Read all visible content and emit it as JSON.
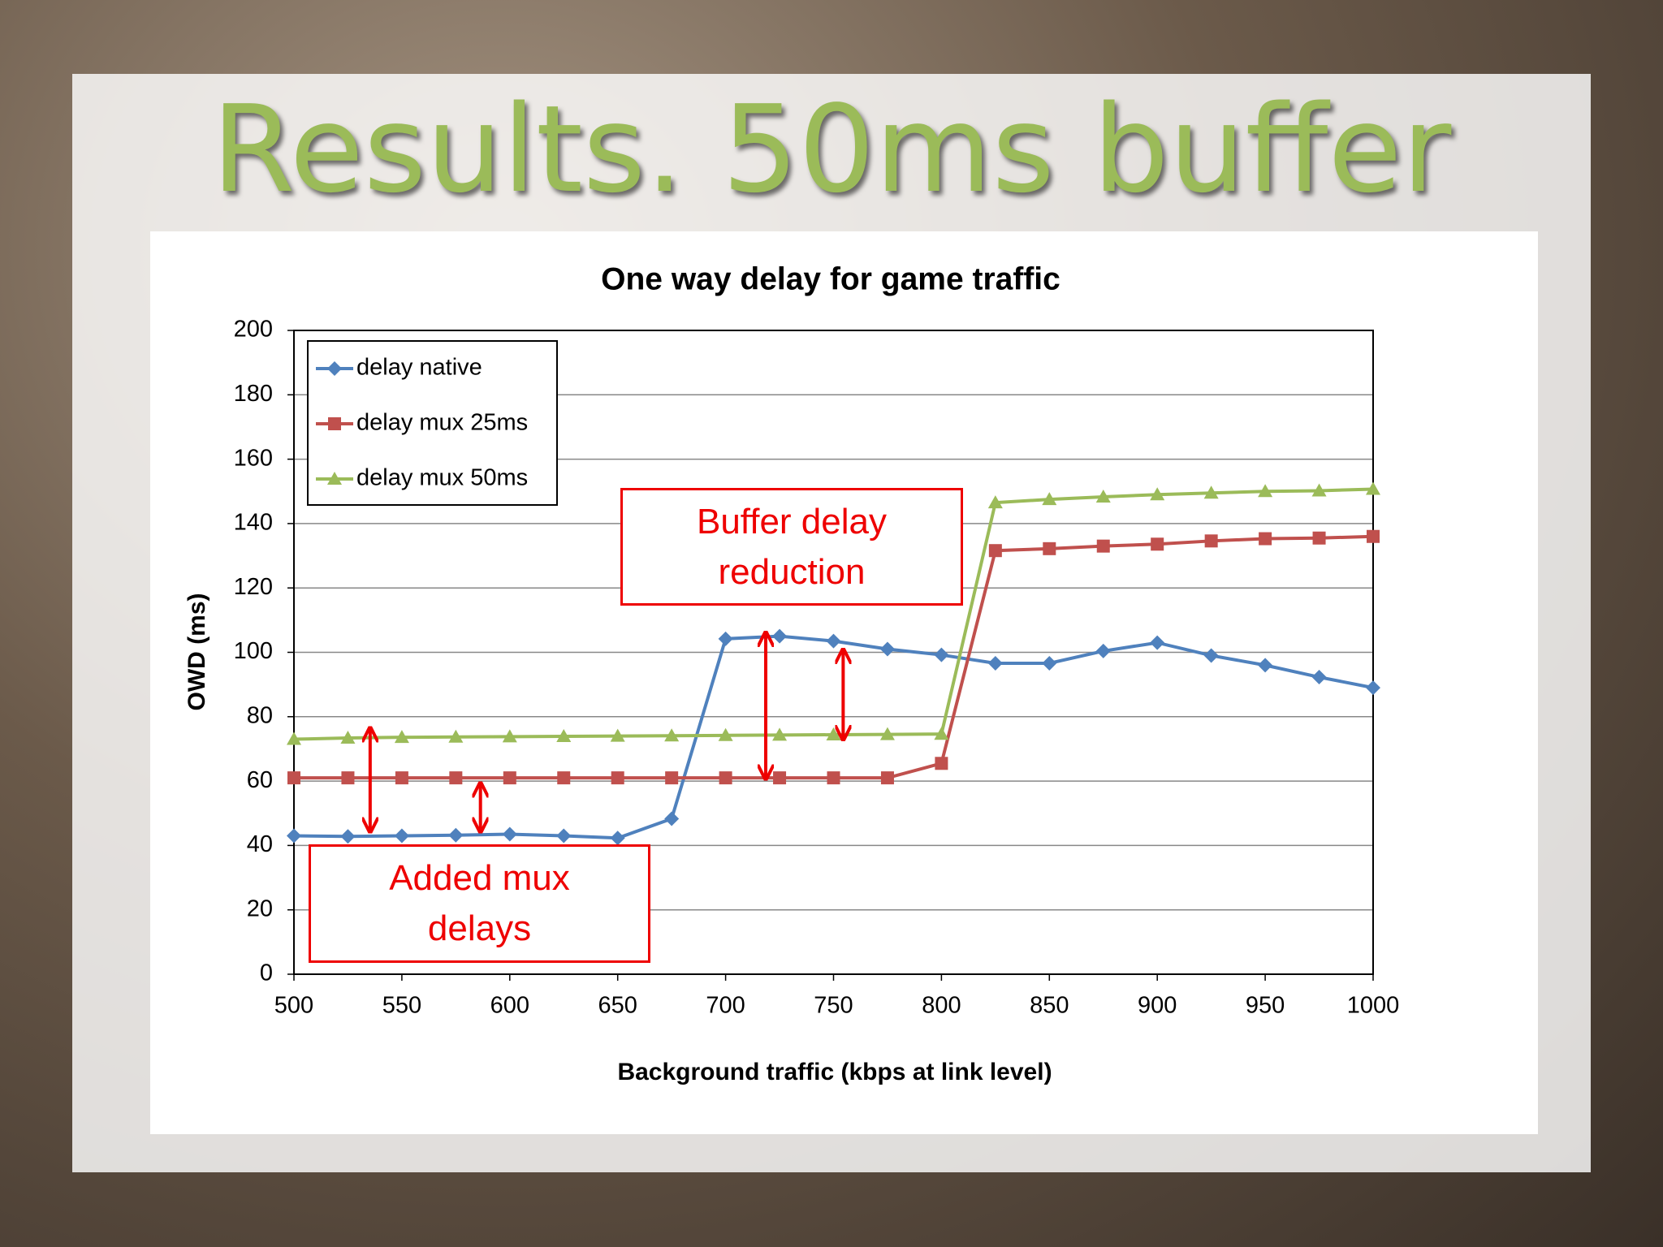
{
  "slide_title": "Results. 50ms buffer",
  "chart_data": {
    "type": "line",
    "title": "One way delay for game traffic",
    "xlabel": "Background traffic (kbps at link level)",
    "ylabel": "OWD (ms)",
    "x": [
      500,
      525,
      550,
      575,
      600,
      625,
      650,
      675,
      700,
      725,
      750,
      775,
      800,
      825,
      850,
      875,
      900,
      925,
      950,
      975,
      1000
    ],
    "series": [
      {
        "name": "delay native",
        "color": "#4f81bd",
        "marker": "diamond",
        "values": [
          43,
          42.8,
          43,
          43.2,
          43.5,
          43,
          42.3,
          48.3,
          104.2,
          105,
          103.5,
          101,
          99.2,
          96.6,
          96.6,
          100.4,
          103,
          99,
          96,
          92.3,
          89
        ]
      },
      {
        "name": "delay mux 25ms",
        "color": "#c0504d",
        "marker": "square",
        "values": [
          61,
          61,
          61,
          61,
          61,
          61,
          61,
          61,
          61,
          61,
          61,
          61,
          65.5,
          131.6,
          132.2,
          133,
          133.6,
          134.6,
          135.3,
          135.5,
          136
        ]
      },
      {
        "name": "delay mux 50ms",
        "color": "#9bbb59",
        "marker": "triangle",
        "values": [
          73,
          73.4,
          73.6,
          73.7,
          73.8,
          73.9,
          74,
          74.1,
          74.2,
          74.3,
          74.4,
          74.5,
          74.6,
          146.5,
          147.5,
          148.3,
          149,
          149.5,
          150,
          150.2,
          150.7
        ]
      }
    ],
    "xlim": [
      500,
      1000
    ],
    "xticks": [
      500,
      550,
      600,
      650,
      700,
      750,
      800,
      850,
      900,
      950,
      1000
    ],
    "ylim": [
      0,
      200
    ],
    "yticks": [
      0,
      20,
      40,
      60,
      80,
      100,
      120,
      140,
      160,
      180,
      200
    ],
    "grid": true,
    "legend": "upper left",
    "annotations": [
      "Buffer delay reduction",
      "Added mux delays"
    ]
  }
}
